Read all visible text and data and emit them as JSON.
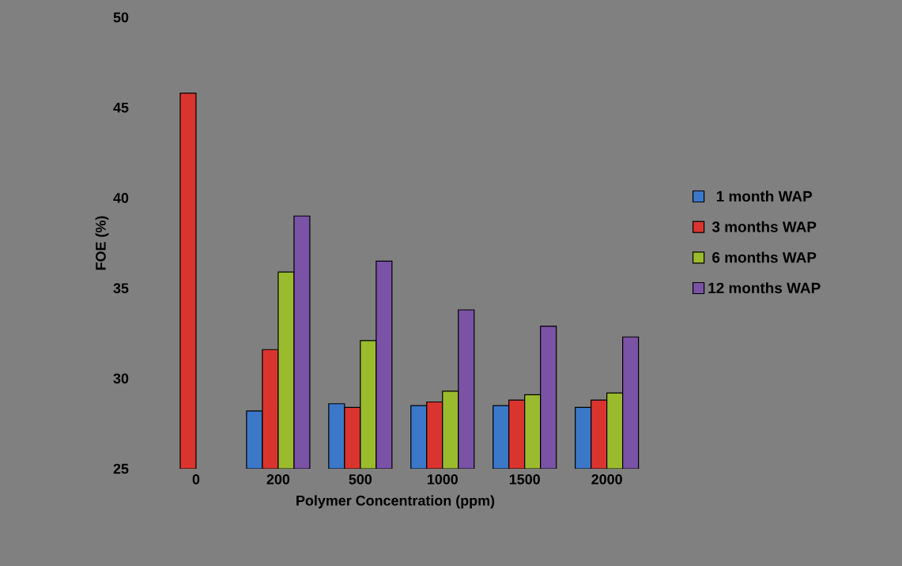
{
  "chart_data": {
    "type": "bar",
    "xlabel": "Polymer Concentration (ppm)",
    "ylabel": "FOE (%)",
    "categories": [
      "0",
      "200",
      "500",
      "1000",
      "1500",
      "2000"
    ],
    "series": [
      {
        "name": "1 month WAP",
        "color": "#3b78c8",
        "values": [
          null,
          28.2,
          28.6,
          28.5,
          28.5,
          28.4
        ]
      },
      {
        "name": "3 months WAP",
        "color": "#d9352e",
        "values": [
          45.8,
          31.6,
          28.4,
          28.7,
          28.8,
          28.8
        ]
      },
      {
        "name": "6 months WAP",
        "color": "#9bbb2e",
        "values": [
          null,
          35.9,
          32.1,
          29.3,
          29.1,
          29.2
        ]
      },
      {
        "name": "12 months WAP",
        "color": "#7a52a6",
        "values": [
          null,
          39.0,
          36.5,
          33.8,
          32.9,
          32.3
        ]
      }
    ],
    "ylim": [
      25,
      50
    ],
    "yticks": [
      25,
      30,
      35,
      40,
      45,
      50
    ],
    "legend": "right",
    "grid": false
  }
}
